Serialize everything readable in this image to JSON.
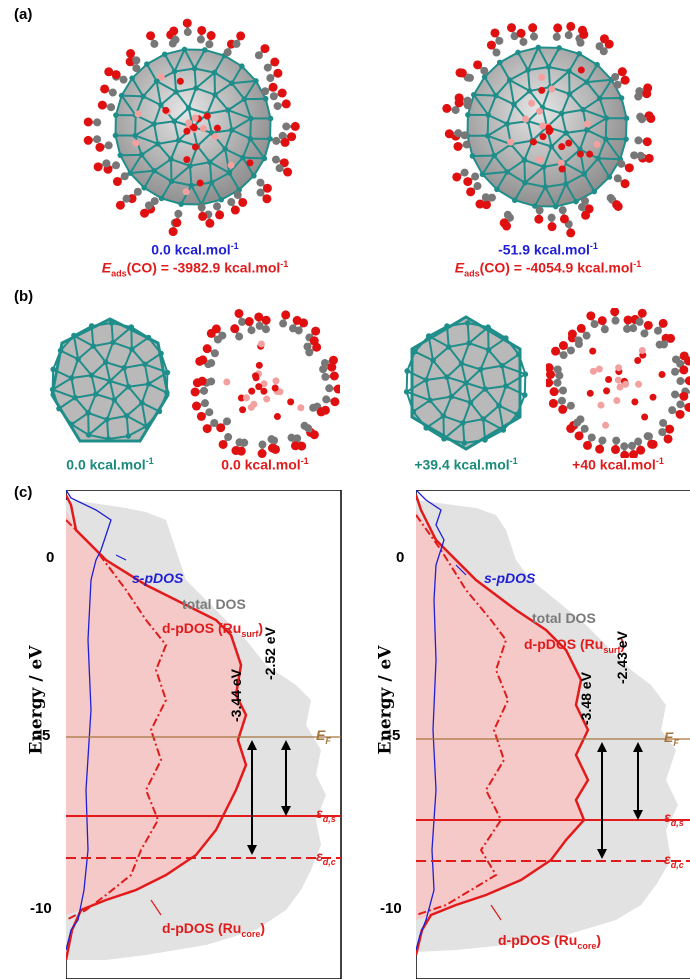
{
  "labels": {
    "a": "(a)",
    "b": "(b)",
    "c": "(c)"
  },
  "panel_a": {
    "left": {
      "energy": "0.0 kcal.mol",
      "energy_sup": "-1",
      "eads_prefix": "E",
      "eads_sub": "ads",
      "eads_rest": "(CO) = -3982.9 kcal.mol",
      "eads_sup": "-1"
    },
    "right": {
      "energy": "-51.9 kcal.mol",
      "energy_sup": "-1",
      "eads_prefix": "E",
      "eads_sub": "ads",
      "eads_rest": "(CO) = -4054.9 kcal.mol",
      "eads_sup": "-1"
    }
  },
  "panel_b": {
    "items": [
      {
        "value": "0.0 kcal.mol",
        "sup": "-1"
      },
      {
        "value": "0.0 kcal.mol",
        "sup": "-1"
      },
      {
        "value": "+39.4 kcal.mol",
        "sup": "-1"
      },
      {
        "value": "+40 kcal.mol",
        "sup": "-1"
      }
    ]
  },
  "panel_c": {
    "ylabel": "Energy / eV",
    "yticks": [
      "0",
      "-5",
      "-10"
    ],
    "left": {
      "s_pdos": "s-pDOS",
      "total_dos": "total DOS",
      "d_surf_prefix": "d-pDOS (Ru",
      "d_surf_sub": "surf",
      "d_surf_suffix": ")",
      "d_core_prefix": "d-pDOS (Ru",
      "d_core_sub": "core",
      "d_core_suffix": ")",
      "gap1": "-3.44 eV",
      "gap2": "-2.52 eV",
      "ef": "E",
      "ef_sub": "F",
      "eds": "ε",
      "eds_sub": "d,s",
      "edc": "ε",
      "edc_sub": "d,c"
    },
    "right": {
      "s_pdos": "s-pDOS",
      "total_dos": "total DOS",
      "d_surf_prefix": "d-pDOS (Ru",
      "d_surf_sub": "surf",
      "d_surf_suffix": ")",
      "d_core_prefix": "d-pDOS (Ru",
      "d_core_sub": "core",
      "d_core_suffix": ")",
      "gap1": "-3.48 eV",
      "gap2": "-2.43 eV",
      "ef": "E",
      "ef_sub": "F",
      "eds": "ε",
      "eds_sub": "d,s",
      "edc": "ε",
      "edc_sub": "d,c"
    }
  },
  "colors": {
    "blue": "#1f1fd6",
    "red": "#e11b1b",
    "teal": "#1a8a7a",
    "ruthenium": "#1f8e8a",
    "carbon": "#777777",
    "oxygen": "#e01010",
    "fermi": "#a6743f"
  }
}
